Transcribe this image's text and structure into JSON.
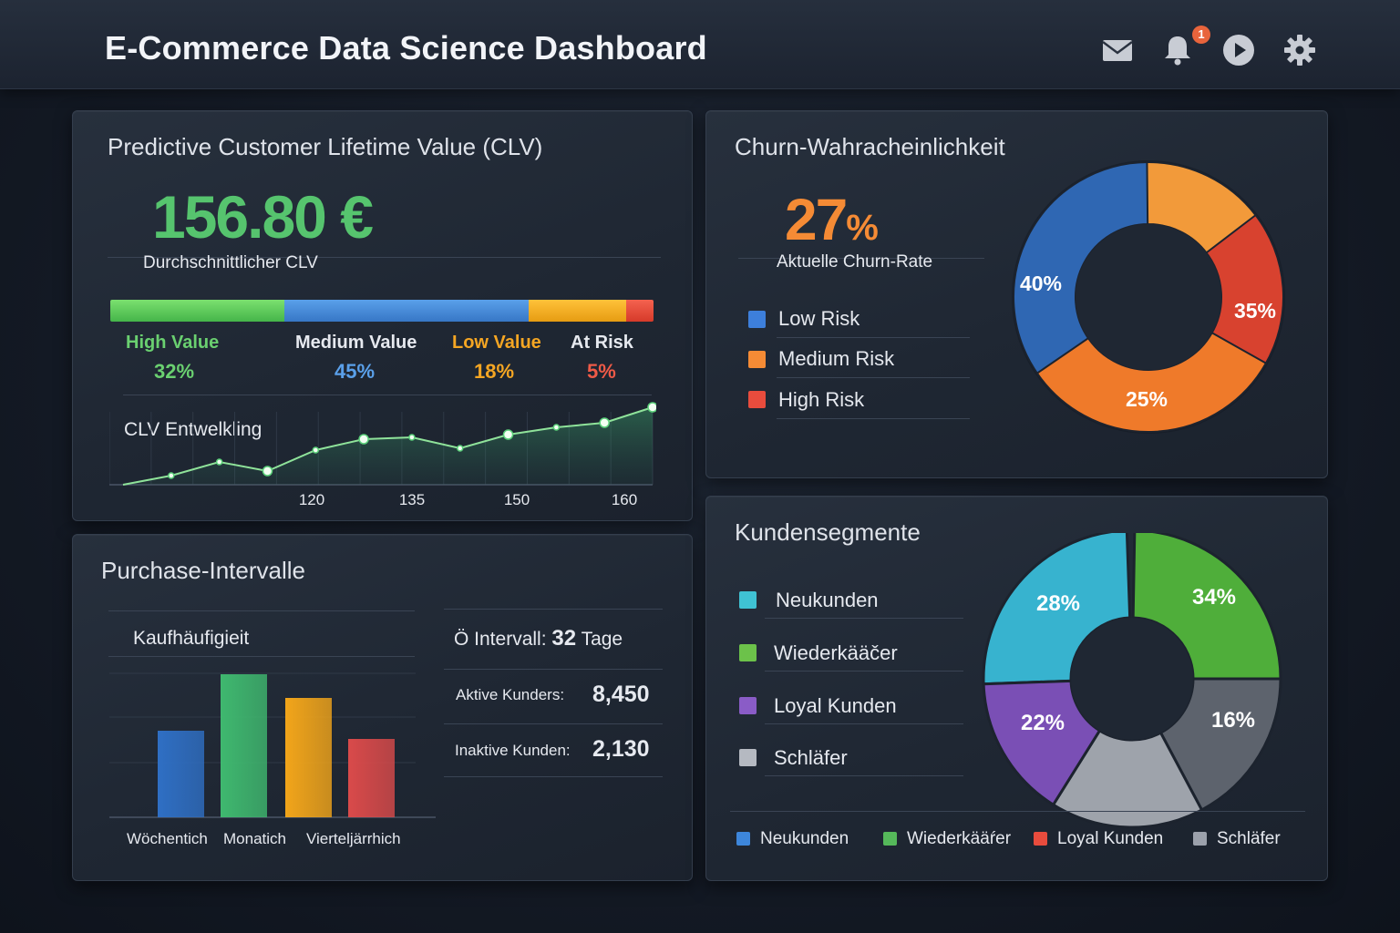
{
  "header": {
    "title": "E-Commerce Data Science Dashboard",
    "notification_count": "1",
    "icons": [
      "mail-icon",
      "bell-icon",
      "play-icon",
      "gear-icon"
    ]
  },
  "clv": {
    "title": "Predictive Customer Lifetime Value (CLV)",
    "value": "156.80 €",
    "caption": "Durchschnittlicher CLV",
    "segments": [
      {
        "label": "High Value",
        "pct": "32%",
        "share": 32,
        "color": "#5cc95c"
      },
      {
        "label": "Medium Value",
        "pct": "45%",
        "share": 45,
        "color": "#4a8fdc"
      },
      {
        "label": "Low Value",
        "pct": "18%",
        "share": 18,
        "color": "#f0b429"
      },
      {
        "label": "At Risk",
        "pct": "5%",
        "share": 5,
        "color": "#e84c3d"
      }
    ],
    "trend": {
      "title": "CLV Entwelkling",
      "tick_labels": [
        "120",
        "135",
        "150",
        "160"
      ]
    }
  },
  "churn": {
    "title": "Churn-Wahracheinlichkeit",
    "rate_value": "27",
    "rate_unit": "%",
    "rate_label": "Aktuelle Churn-Rate",
    "legend": [
      {
        "label": "Low Risk",
        "color": "#3d7fdb"
      },
      {
        "label": "Medium Risk",
        "color": "#f58b35"
      },
      {
        "label": "High Risk",
        "color": "#e84c3d"
      }
    ]
  },
  "purchase": {
    "title": "Purchase-Intervalle",
    "subtitle": "Kaufhäufigieit",
    "interval_label": "Ö Intervall:",
    "interval_value": "32",
    "interval_unit": "Tage",
    "active_label": "Aktive Kunders:",
    "active_value": "8,450",
    "inactive_label": "Inaktive Kunden:",
    "inactive_value": "2,130",
    "bar_labels": [
      "Wöchentich",
      "Monatich",
      "Vierteljärrhich"
    ]
  },
  "segments": {
    "title": "Kundensegmente",
    "legend": [
      {
        "label": "Neukunden",
        "color": "#3fc2d4"
      },
      {
        "label": "Wiederkääčer",
        "color": "#6cc24a"
      },
      {
        "label": "Loyal Kunden",
        "color": "#8a5cc7"
      },
      {
        "label": "Schläfer",
        "color": "#b5b9c1"
      }
    ],
    "bottom_legend": [
      {
        "label": "Neukunden",
        "color": "#3d86db"
      },
      {
        "label": "Wiederkääŕer",
        "color": "#55b85a"
      },
      {
        "label": "Loyal Kunden",
        "color": "#e84c3d"
      },
      {
        "label": "Schläfer",
        "color": "#9ba1ab"
      }
    ]
  },
  "chart_data": [
    {
      "type": "line",
      "title": "CLV Entwelkling",
      "x_tick_labels": [
        "120",
        "135",
        "150",
        "160"
      ],
      "x": [
        0,
        1,
        2,
        3,
        4,
        5,
        6,
        7,
        8,
        9,
        10,
        11
      ],
      "values": [
        0,
        10,
        25,
        15,
        38,
        50,
        52,
        40,
        55,
        63,
        68,
        85
      ],
      "ylim": [
        0,
        100
      ],
      "grid": true
    },
    {
      "type": "pie",
      "title": "Churn-Wahracheinlichkeit",
      "slices": [
        {
          "label": "40%",
          "value": 40,
          "color": "#2f67b3"
        },
        {
          "label": "35%",
          "value": 35,
          "color": "#d8422f"
        },
        {
          "label": "25%",
          "value": 25,
          "color": "#ef7a2a"
        },
        {
          "label": "",
          "value": 0,
          "color": "#f29a3a"
        }
      ]
    },
    {
      "type": "bar",
      "title": "Kaufhäufigieit",
      "categories": [
        "Wöchentich",
        "Monatich",
        "Vierteljärrhich",
        ""
      ],
      "values": [
        95,
        157,
        131,
        86
      ],
      "colors": [
        "#2f6fc4",
        "#3fb86f",
        "#f2a51a",
        "#d94a4a"
      ],
      "grid": true
    },
    {
      "type": "pie",
      "title": "Kundensegmente",
      "slices": [
        {
          "label": "28%",
          "value": 28,
          "color": "#37b3cf"
        },
        {
          "label": "34%",
          "value": 34,
          "color": "#4fae3a"
        },
        {
          "label": "16%",
          "value": 16,
          "color": "#5d636d"
        },
        {
          "label": "",
          "value": 0,
          "color": "#9ea3ab"
        },
        {
          "label": "22%",
          "value": 22,
          "color": "#7a4fb5"
        }
      ]
    }
  ]
}
